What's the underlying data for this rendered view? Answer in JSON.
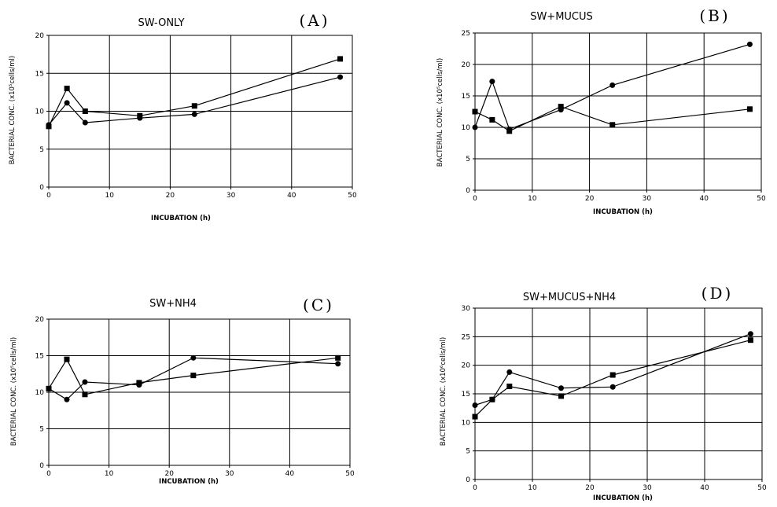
{
  "chart_data": [
    {
      "type": "line",
      "title": "SW-ONLY",
      "panel_label": "(A)",
      "xlabel": "INCUBATION (h)",
      "ylabel": "BACTERIAL CONC. (x10⁵cells/ml)",
      "xlim": [
        0,
        50
      ],
      "ylim": [
        0,
        20
      ],
      "xticks": [
        "0",
        "10",
        "20",
        "30",
        "40",
        "50"
      ],
      "yticks": [
        "0",
        "5",
        "10",
        "15",
        "20"
      ],
      "grid": true,
      "series": [
        {
          "marker": "square",
          "x": [
            0,
            3,
            6,
            15,
            24,
            48
          ],
          "y": [
            8.0,
            13.0,
            10.0,
            9.4,
            10.7,
            16.9
          ]
        },
        {
          "marker": "circle",
          "x": [
            0,
            3,
            6,
            15,
            24,
            48
          ],
          "y": [
            8.2,
            11.1,
            8.5,
            9.1,
            9.6,
            14.5
          ]
        }
      ]
    },
    {
      "type": "line",
      "title": "SW+MUCUS",
      "panel_label": "(B)",
      "xlabel": "INCUBATION (h)",
      "ylabel": "BACTERIAL CONC. (x10⁵cells/ml)",
      "xlim": [
        0,
        50
      ],
      "ylim": [
        0,
        25
      ],
      "xticks": [
        "0",
        "10",
        "20",
        "30",
        "40",
        "50"
      ],
      "yticks": [
        "0",
        "5",
        "10",
        "15",
        "20",
        "25"
      ],
      "grid": true,
      "series": [
        {
          "marker": "square",
          "x": [
            0,
            3,
            6,
            15,
            24,
            48
          ],
          "y": [
            12.5,
            11.2,
            9.4,
            13.3,
            10.4,
            12.9
          ]
        },
        {
          "marker": "circle",
          "x": [
            0,
            3,
            6,
            15,
            24,
            48
          ],
          "y": [
            10.0,
            17.3,
            9.7,
            12.8,
            16.7,
            23.2
          ]
        }
      ]
    },
    {
      "type": "line",
      "title": "SW+NH4",
      "panel_label": "(C)",
      "xlabel": "INCUBATION (h)",
      "ylabel": "BACTERIAL CONC. (x10⁵cells/ml)",
      "xlim": [
        0,
        50
      ],
      "ylim": [
        0,
        20
      ],
      "xticks": [
        "0",
        "10",
        "20",
        "30",
        "40",
        "50"
      ],
      "yticks": [
        "0",
        "5",
        "10",
        "15",
        "20"
      ],
      "grid": true,
      "series": [
        {
          "marker": "square",
          "x": [
            0,
            3,
            6,
            15,
            24,
            48
          ],
          "y": [
            10.5,
            14.5,
            9.7,
            11.3,
            12.3,
            14.7
          ]
        },
        {
          "marker": "circle",
          "x": [
            0,
            3,
            6,
            15,
            24,
            48
          ],
          "y": [
            10.5,
            9.0,
            11.4,
            11.0,
            14.7,
            13.9
          ]
        }
      ]
    },
    {
      "type": "line",
      "title": "SW+MUCUS+NH4",
      "panel_label": "(D)",
      "xlabel": "INCUBATION (h)",
      "ylabel": "BACTERIAL CONC. (x10⁶cells/ml)",
      "xlim": [
        0,
        50
      ],
      "ylim": [
        0,
        30
      ],
      "xticks": [
        "0",
        "10",
        "20",
        "30",
        "40",
        "50"
      ],
      "yticks": [
        "0",
        "5",
        "10",
        "15",
        "20",
        "25",
        "30"
      ],
      "grid": true,
      "series": [
        {
          "marker": "square",
          "x": [
            0,
            3,
            6,
            15,
            24,
            48
          ],
          "y": [
            11.0,
            14.0,
            16.3,
            14.6,
            18.3,
            24.4
          ]
        },
        {
          "marker": "circle",
          "x": [
            0,
            3,
            6,
            15,
            24,
            48
          ],
          "y": [
            13.0,
            14.0,
            18.8,
            16.0,
            16.2,
            25.5
          ]
        }
      ]
    }
  ]
}
